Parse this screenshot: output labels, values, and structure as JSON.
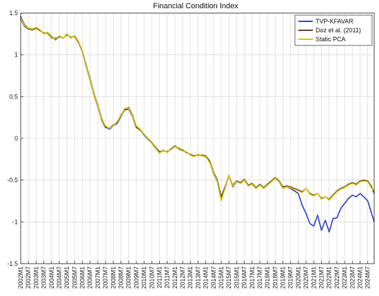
{
  "chart_data": {
    "type": "line",
    "title": "Financial Condition Index",
    "xlabel": "",
    "ylabel": "",
    "x_ticks": [
      "2002M1",
      "2002M7",
      "2003M1",
      "2003M7",
      "2004M1",
      "2004M7",
      "2005M1",
      "2005M7",
      "2006M1",
      "2006M7",
      "2007M1",
      "2007M7",
      "2008M1",
      "2008M7",
      "2009M1",
      "2009M7",
      "2010M1",
      "2010M7",
      "2011M1",
      "2011M7",
      "2012M1",
      "2012M7",
      "2013M1",
      "2013M7",
      "2014M1",
      "2014M7",
      "2015M1",
      "2015M7",
      "2016M1",
      "2016M7",
      "2017M1",
      "2017M7",
      "2018M1",
      "2018M7",
      "2019M1",
      "2019M7",
      "2020M1",
      "2020M7",
      "2021M1",
      "2021M7",
      "2022M1",
      "2022M7",
      "2023M1",
      "2023M7",
      "2024M1",
      "2024M7"
    ],
    "y_ticks": [
      "1.5",
      "1",
      "0.5",
      "0",
      "-0.5",
      "-1",
      "-1.5"
    ],
    "ylim": [
      -1.5,
      1.5
    ],
    "x_range": [
      2002.0,
      2024.917
    ],
    "grid": true,
    "legend_position": "top-right",
    "colors": {
      "tvp": "#3a48c4",
      "doz": "#6b4a1c",
      "pca": "#d8c81a",
      "grid": "#dcdcdc",
      "axis": "#333333"
    },
    "series": [
      {
        "name": "TVP-KFAVAR",
        "color": "#3a48c4",
        "points": [
          [
            2002.0,
            1.46
          ],
          [
            2002.25,
            1.36
          ],
          [
            2002.5,
            1.32
          ],
          [
            2002.75,
            1.31
          ],
          [
            2003.0,
            1.33
          ],
          [
            2003.25,
            1.3
          ],
          [
            2003.5,
            1.25
          ],
          [
            2003.75,
            1.27
          ],
          [
            2004.0,
            1.22
          ],
          [
            2004.25,
            1.18
          ],
          [
            2004.5,
            1.22
          ],
          [
            2004.75,
            1.2
          ],
          [
            2005.0,
            1.25
          ],
          [
            2005.25,
            1.2
          ],
          [
            2005.5,
            1.23
          ],
          [
            2005.75,
            1.16
          ],
          [
            2006.0,
            1.05
          ],
          [
            2006.25,
            0.88
          ],
          [
            2006.5,
            0.72
          ],
          [
            2006.75,
            0.54
          ],
          [
            2007.0,
            0.4
          ],
          [
            2007.25,
            0.24
          ],
          [
            2007.5,
            0.14
          ],
          [
            2007.75,
            0.11
          ],
          [
            2008.0,
            0.15
          ],
          [
            2008.25,
            0.18
          ],
          [
            2008.5,
            0.26
          ],
          [
            2008.75,
            0.35
          ],
          [
            2009.0,
            0.37
          ],
          [
            2009.25,
            0.28
          ],
          [
            2009.5,
            0.14
          ],
          [
            2009.75,
            0.11
          ],
          [
            2010.0,
            0.04
          ],
          [
            2010.25,
            -0.01
          ],
          [
            2010.5,
            -0.06
          ],
          [
            2010.75,
            -0.12
          ],
          [
            2011.0,
            -0.17
          ],
          [
            2011.25,
            -0.14
          ],
          [
            2011.5,
            -0.17
          ],
          [
            2011.75,
            -0.12
          ],
          [
            2012.0,
            -0.09
          ],
          [
            2012.25,
            -0.13
          ],
          [
            2012.5,
            -0.15
          ],
          [
            2012.75,
            -0.16
          ],
          [
            2013.0,
            -0.2
          ],
          [
            2013.25,
            -0.22
          ],
          [
            2013.5,
            -0.19
          ],
          [
            2013.75,
            -0.21
          ],
          [
            2014.0,
            -0.22
          ],
          [
            2014.25,
            -0.28
          ],
          [
            2014.5,
            -0.42
          ],
          [
            2014.75,
            -0.52
          ],
          [
            2015.0,
            -0.73
          ],
          [
            2015.25,
            -0.6
          ],
          [
            2015.5,
            -0.44
          ],
          [
            2015.75,
            -0.58
          ],
          [
            2016.0,
            -0.52
          ],
          [
            2016.25,
            -0.54
          ],
          [
            2016.5,
            -0.5
          ],
          [
            2016.75,
            -0.57
          ],
          [
            2017.0,
            -0.55
          ],
          [
            2017.25,
            -0.6
          ],
          [
            2017.5,
            -0.56
          ],
          [
            2017.75,
            -0.6
          ],
          [
            2018.0,
            -0.56
          ],
          [
            2018.25,
            -0.52
          ],
          [
            2018.5,
            -0.48
          ],
          [
            2018.75,
            -0.52
          ],
          [
            2019.0,
            -0.6
          ],
          [
            2019.25,
            -0.58
          ],
          [
            2019.5,
            -0.6
          ],
          [
            2019.75,
            -0.63
          ],
          [
            2020.0,
            -0.66
          ],
          [
            2020.25,
            -0.8
          ],
          [
            2020.5,
            -0.9
          ],
          [
            2020.75,
            -1.02
          ],
          [
            2021.0,
            -1.05
          ],
          [
            2021.25,
            -0.92
          ],
          [
            2021.5,
            -1.1
          ],
          [
            2021.75,
            -0.98
          ],
          [
            2022.0,
            -1.12
          ],
          [
            2022.25,
            -0.96
          ],
          [
            2022.5,
            -0.95
          ],
          [
            2022.75,
            -0.84
          ],
          [
            2023.0,
            -0.78
          ],
          [
            2023.25,
            -0.72
          ],
          [
            2023.5,
            -0.68
          ],
          [
            2023.75,
            -0.7
          ],
          [
            2024.0,
            -0.66
          ],
          [
            2024.25,
            -0.7
          ],
          [
            2024.5,
            -0.75
          ],
          [
            2024.75,
            -0.9
          ],
          [
            2024.917,
            -1.0
          ]
        ]
      },
      {
        "name": "Doz et al. (2011)",
        "color": "#6b4a1c",
        "points": [
          [
            2002.0,
            1.43
          ],
          [
            2002.25,
            1.34
          ],
          [
            2002.5,
            1.31
          ],
          [
            2002.75,
            1.3
          ],
          [
            2003.0,
            1.32
          ],
          [
            2003.25,
            1.29
          ],
          [
            2003.5,
            1.26
          ],
          [
            2003.75,
            1.26
          ],
          [
            2004.0,
            1.2
          ],
          [
            2004.25,
            1.2
          ],
          [
            2004.5,
            1.22
          ],
          [
            2004.75,
            1.2
          ],
          [
            2005.0,
            1.24
          ],
          [
            2005.25,
            1.21
          ],
          [
            2005.5,
            1.22
          ],
          [
            2005.75,
            1.15
          ],
          [
            2006.0,
            1.04
          ],
          [
            2006.25,
            0.86
          ],
          [
            2006.5,
            0.7
          ],
          [
            2006.75,
            0.52
          ],
          [
            2007.0,
            0.38
          ],
          [
            2007.25,
            0.22
          ],
          [
            2007.5,
            0.13
          ],
          [
            2007.75,
            0.12
          ],
          [
            2008.0,
            0.16
          ],
          [
            2008.25,
            0.19
          ],
          [
            2008.5,
            0.28
          ],
          [
            2008.75,
            0.34
          ],
          [
            2009.0,
            0.35
          ],
          [
            2009.25,
            0.26
          ],
          [
            2009.5,
            0.13
          ],
          [
            2009.75,
            0.1
          ],
          [
            2010.0,
            0.05
          ],
          [
            2010.25,
            0.0
          ],
          [
            2010.5,
            -0.05
          ],
          [
            2010.75,
            -0.11
          ],
          [
            2011.0,
            -0.16
          ],
          [
            2011.25,
            -0.15
          ],
          [
            2011.5,
            -0.16
          ],
          [
            2011.75,
            -0.13
          ],
          [
            2012.0,
            -0.1
          ],
          [
            2012.25,
            -0.12
          ],
          [
            2012.5,
            -0.14
          ],
          [
            2012.75,
            -0.17
          ],
          [
            2013.0,
            -0.19
          ],
          [
            2013.25,
            -0.21
          ],
          [
            2013.5,
            -0.2
          ],
          [
            2013.75,
            -0.2
          ],
          [
            2014.0,
            -0.21
          ],
          [
            2014.25,
            -0.27
          ],
          [
            2014.5,
            -0.4
          ],
          [
            2014.75,
            -0.5
          ],
          [
            2015.0,
            -0.7
          ],
          [
            2015.25,
            -0.58
          ],
          [
            2015.5,
            -0.45
          ],
          [
            2015.75,
            -0.56
          ],
          [
            2016.0,
            -0.51
          ],
          [
            2016.25,
            -0.53
          ],
          [
            2016.5,
            -0.49
          ],
          [
            2016.75,
            -0.56
          ],
          [
            2017.0,
            -0.54
          ],
          [
            2017.25,
            -0.59
          ],
          [
            2017.5,
            -0.55
          ],
          [
            2017.75,
            -0.59
          ],
          [
            2018.0,
            -0.55
          ],
          [
            2018.25,
            -0.51
          ],
          [
            2018.5,
            -0.47
          ],
          [
            2018.75,
            -0.51
          ],
          [
            2019.0,
            -0.58
          ],
          [
            2019.25,
            -0.57
          ],
          [
            2019.5,
            -0.58
          ],
          [
            2019.75,
            -0.6
          ],
          [
            2020.0,
            -0.62
          ],
          [
            2020.25,
            -0.64
          ],
          [
            2020.5,
            -0.6
          ],
          [
            2020.75,
            -0.66
          ],
          [
            2021.0,
            -0.68
          ],
          [
            2021.25,
            -0.66
          ],
          [
            2021.5,
            -0.72
          ],
          [
            2021.75,
            -0.7
          ],
          [
            2022.0,
            -0.73
          ],
          [
            2022.25,
            -0.68
          ],
          [
            2022.5,
            -0.63
          ],
          [
            2022.75,
            -0.6
          ],
          [
            2023.0,
            -0.58
          ],
          [
            2023.25,
            -0.55
          ],
          [
            2023.5,
            -0.53
          ],
          [
            2023.75,
            -0.55
          ],
          [
            2024.0,
            -0.51
          ],
          [
            2024.25,
            -0.5
          ],
          [
            2024.5,
            -0.51
          ],
          [
            2024.75,
            -0.58
          ],
          [
            2024.917,
            -0.66
          ]
        ]
      },
      {
        "name": "Static PCA",
        "color": "#d8c81a",
        "points": [
          [
            2002.0,
            1.44
          ],
          [
            2002.25,
            1.35
          ],
          [
            2002.5,
            1.32
          ],
          [
            2002.75,
            1.31
          ],
          [
            2003.0,
            1.33
          ],
          [
            2003.25,
            1.3
          ],
          [
            2003.5,
            1.25
          ],
          [
            2003.75,
            1.27
          ],
          [
            2004.0,
            1.21
          ],
          [
            2004.25,
            1.19
          ],
          [
            2004.5,
            1.23
          ],
          [
            2004.75,
            1.2
          ],
          [
            2005.0,
            1.25
          ],
          [
            2005.25,
            1.2
          ],
          [
            2005.5,
            1.23
          ],
          [
            2005.75,
            1.16
          ],
          [
            2006.0,
            1.05
          ],
          [
            2006.25,
            0.87
          ],
          [
            2006.5,
            0.71
          ],
          [
            2006.75,
            0.53
          ],
          [
            2007.0,
            0.39
          ],
          [
            2007.25,
            0.23
          ],
          [
            2007.5,
            0.15
          ],
          [
            2007.75,
            0.12
          ],
          [
            2008.0,
            0.15
          ],
          [
            2008.25,
            0.2
          ],
          [
            2008.5,
            0.27
          ],
          [
            2008.75,
            0.36
          ],
          [
            2009.0,
            0.36
          ],
          [
            2009.25,
            0.27
          ],
          [
            2009.5,
            0.15
          ],
          [
            2009.75,
            0.11
          ],
          [
            2010.0,
            0.05
          ],
          [
            2010.25,
            0.0
          ],
          [
            2010.5,
            -0.06
          ],
          [
            2010.75,
            -0.12
          ],
          [
            2011.0,
            -0.18
          ],
          [
            2011.25,
            -0.14
          ],
          [
            2011.5,
            -0.17
          ],
          [
            2011.75,
            -0.12
          ],
          [
            2012.0,
            -0.1
          ],
          [
            2012.25,
            -0.13
          ],
          [
            2012.5,
            -0.15
          ],
          [
            2012.75,
            -0.16
          ],
          [
            2013.0,
            -0.2
          ],
          [
            2013.25,
            -0.22
          ],
          [
            2013.5,
            -0.19
          ],
          [
            2013.75,
            -0.21
          ],
          [
            2014.0,
            -0.22
          ],
          [
            2014.25,
            -0.29
          ],
          [
            2014.5,
            -0.41
          ],
          [
            2014.75,
            -0.52
          ],
          [
            2015.0,
            -0.75
          ],
          [
            2015.25,
            -0.6
          ],
          [
            2015.5,
            -0.44
          ],
          [
            2015.75,
            -0.57
          ],
          [
            2016.0,
            -0.52
          ],
          [
            2016.25,
            -0.54
          ],
          [
            2016.5,
            -0.5
          ],
          [
            2016.75,
            -0.57
          ],
          [
            2017.0,
            -0.55
          ],
          [
            2017.25,
            -0.6
          ],
          [
            2017.5,
            -0.56
          ],
          [
            2017.75,
            -0.6
          ],
          [
            2018.0,
            -0.56
          ],
          [
            2018.25,
            -0.52
          ],
          [
            2018.5,
            -0.48
          ],
          [
            2018.75,
            -0.52
          ],
          [
            2019.0,
            -0.6
          ],
          [
            2019.25,
            -0.58
          ],
          [
            2019.5,
            -0.59
          ],
          [
            2019.75,
            -0.61
          ],
          [
            2020.0,
            -0.63
          ],
          [
            2020.25,
            -0.65
          ],
          [
            2020.5,
            -0.6
          ],
          [
            2020.75,
            -0.67
          ],
          [
            2021.0,
            -0.69
          ],
          [
            2021.25,
            -0.66
          ],
          [
            2021.5,
            -0.73
          ],
          [
            2021.75,
            -0.7
          ],
          [
            2022.0,
            -0.74
          ],
          [
            2022.25,
            -0.69
          ],
          [
            2022.5,
            -0.64
          ],
          [
            2022.75,
            -0.61
          ],
          [
            2023.0,
            -0.59
          ],
          [
            2023.25,
            -0.56
          ],
          [
            2023.5,
            -0.54
          ],
          [
            2023.75,
            -0.56
          ],
          [
            2024.0,
            -0.52
          ],
          [
            2024.25,
            -0.51
          ],
          [
            2024.5,
            -0.52
          ],
          [
            2024.75,
            -0.6
          ],
          [
            2024.917,
            -0.62
          ]
        ]
      }
    ]
  }
}
